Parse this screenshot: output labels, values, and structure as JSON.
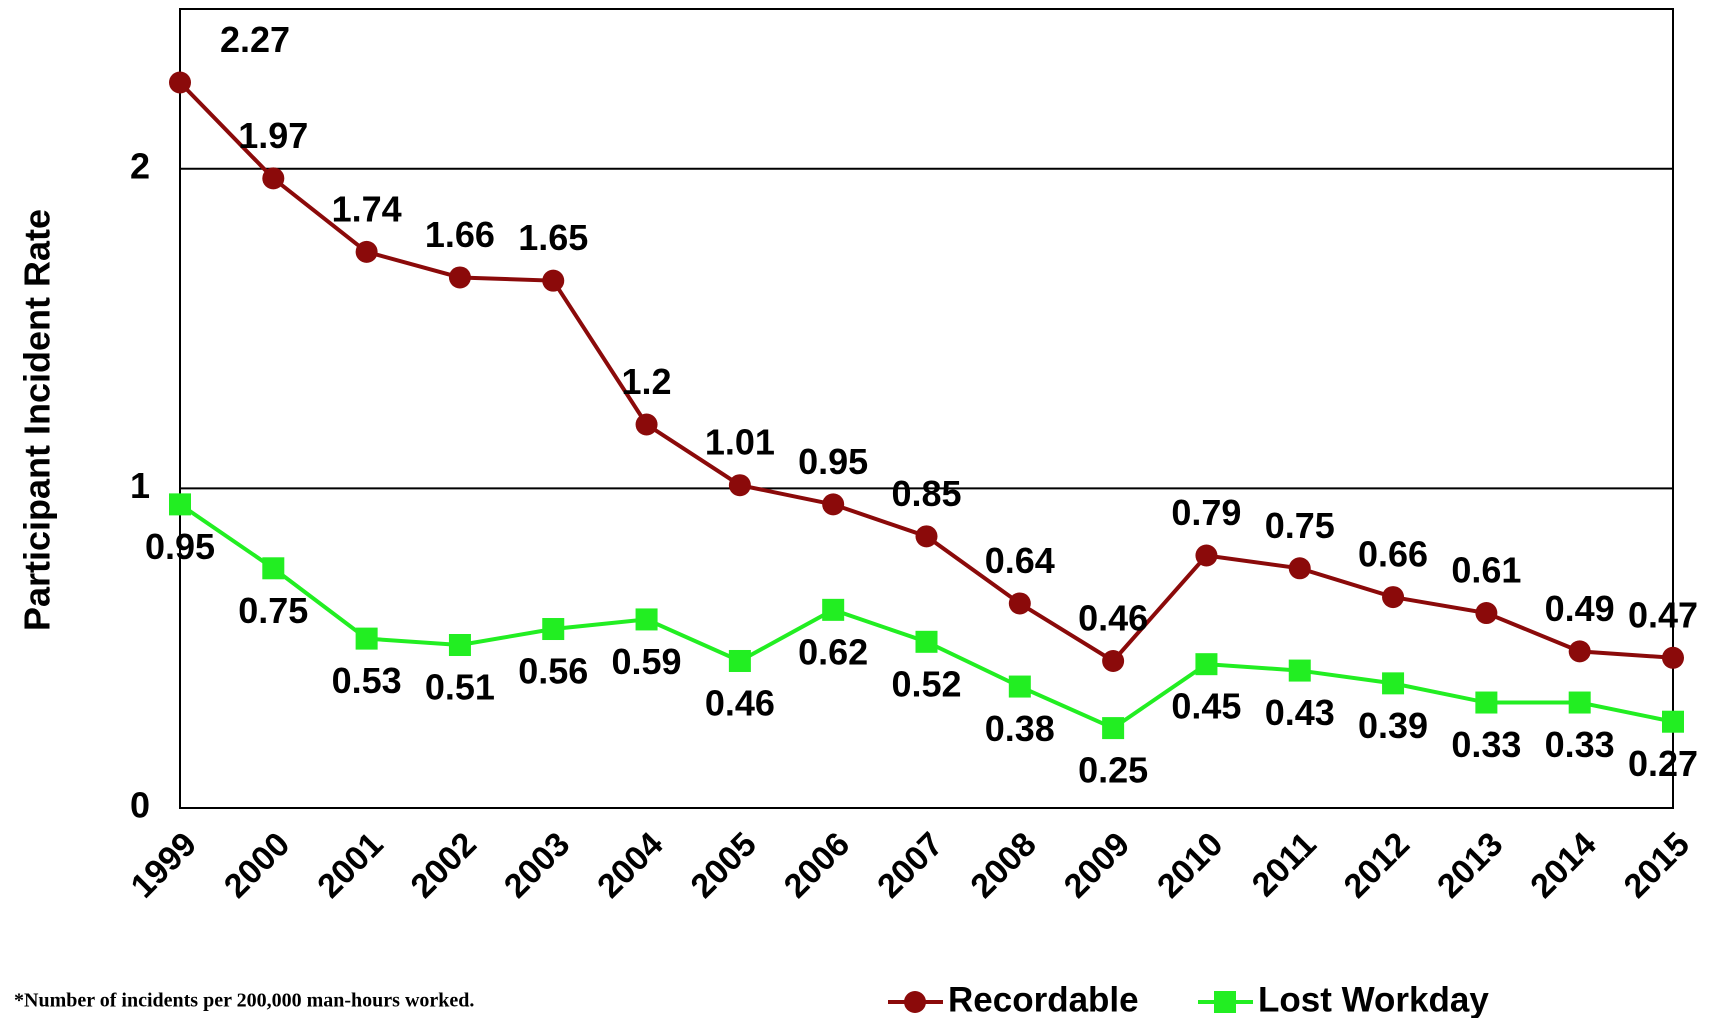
{
  "chart_data": {
    "type": "line",
    "y_label": "Participant Incident Rate",
    "footnote": "*Number of incidents per 200,000 man-hours worked.",
    "categories": [
      "1999",
      "2000",
      "2001",
      "2002",
      "2003",
      "2004",
      "2005",
      "2006",
      "2007",
      "2008",
      "2009",
      "2010",
      "2011",
      "2012",
      "2013",
      "2014",
      "2015"
    ],
    "series": [
      {
        "name": "Recordable",
        "color": "#8b0a0a",
        "marker": "circle",
        "values": [
          2.27,
          1.97,
          1.74,
          1.66,
          1.65,
          1.2,
          1.01,
          0.95,
          0.85,
          0.64,
          0.46,
          0.79,
          0.75,
          0.66,
          0.61,
          0.49,
          0.47
        ]
      },
      {
        "name": "Lost Workday",
        "color": "#22ee22",
        "marker": "square",
        "values": [
          0.95,
          0.75,
          0.53,
          0.51,
          0.56,
          0.59,
          0.46,
          0.62,
          0.52,
          0.38,
          0.25,
          0.45,
          0.43,
          0.39,
          0.33,
          0.33,
          0.27
        ]
      }
    ],
    "ylim": [
      0,
      2.5
    ],
    "yticks": [
      0,
      1,
      2
    ],
    "grid": true,
    "legend": "bottom-right"
  }
}
